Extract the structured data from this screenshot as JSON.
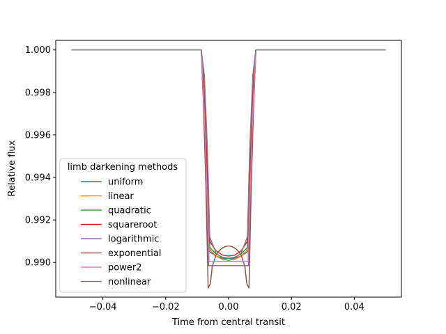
{
  "chart_data": {
    "type": "line",
    "xlabel": "Time from central transit",
    "ylabel": "Relative flux",
    "xlim": [
      -0.055,
      0.055
    ],
    "ylim": [
      0.98837,
      1.00045
    ],
    "xticks": [
      -0.04,
      -0.02,
      0.0,
      0.02,
      0.04
    ],
    "xtick_labels": [
      "−0.04",
      "−0.02",
      "0.00",
      "0.02",
      "0.04"
    ],
    "yticks": [
      0.99,
      0.992,
      0.994,
      0.996,
      0.998,
      1.0
    ],
    "ytick_labels": [
      "0.990",
      "0.992",
      "0.994",
      "0.996",
      "0.998",
      "1.000"
    ],
    "grid": false,
    "legend": {
      "title": "limb darkening methods",
      "position": "lower-left"
    },
    "series": [
      {
        "name": "uniform",
        "color": "#1f77b4",
        "x": [
          -0.05,
          -0.0087,
          -0.0077,
          -0.0067,
          -0.006,
          -0.004,
          -0.002,
          0.0,
          0.002,
          0.004,
          0.006,
          0.0067,
          0.0077,
          0.0087,
          0.05
        ],
        "y": [
          1.0,
          1.0,
          0.9985,
          0.9945,
          0.9905,
          0.9903,
          0.9902,
          0.9902,
          0.9902,
          0.9903,
          0.9905,
          0.9945,
          0.9985,
          1.0,
          1.0
        ]
      },
      {
        "name": "linear",
        "color": "#ff7f0e",
        "x": [
          -0.05,
          -0.0087,
          -0.0077,
          -0.0067,
          -0.006,
          -0.004,
          -0.002,
          0.0,
          0.002,
          0.004,
          0.006,
          0.0067,
          0.0077,
          0.0087,
          0.05
        ],
        "y": [
          1.0,
          1.0,
          0.9982,
          0.9942,
          0.9906,
          0.9903,
          0.99015,
          0.9901,
          0.99015,
          0.9903,
          0.9906,
          0.9942,
          0.9982,
          1.0,
          1.0
        ]
      },
      {
        "name": "quadratic",
        "color": "#2ca02c",
        "x": [
          -0.05,
          -0.0087,
          -0.0077,
          -0.0067,
          -0.006,
          -0.004,
          -0.002,
          0.0,
          0.002,
          0.004,
          0.006,
          0.0067,
          0.0077,
          0.0087,
          0.05
        ],
        "y": [
          1.0,
          1.0,
          0.9983,
          0.9943,
          0.9907,
          0.9904,
          0.99025,
          0.9902,
          0.99025,
          0.9904,
          0.9907,
          0.9943,
          0.9983,
          1.0,
          1.0
        ]
      },
      {
        "name": "squareroot",
        "color": "#d62728",
        "x": [
          -0.05,
          -0.0087,
          -0.0077,
          -0.0067,
          -0.006,
          -0.004,
          -0.002,
          0.0,
          0.002,
          0.004,
          0.006,
          0.0067,
          0.0077,
          0.0087,
          0.05
        ],
        "y": [
          1.0,
          1.0,
          0.998,
          0.9938,
          0.991,
          0.99055,
          0.99035,
          0.9903,
          0.99035,
          0.99055,
          0.991,
          0.9938,
          0.998,
          1.0,
          1.0
        ]
      },
      {
        "name": "logarithmic",
        "color": "#9467bd",
        "x": [
          -0.05,
          -0.0087,
          -0.0077,
          -0.0067,
          -0.0063,
          -0.004,
          -0.002,
          0.0,
          0.002,
          0.004,
          0.0063,
          0.0067,
          0.0077,
          0.0087,
          0.05
        ],
        "y": [
          1.0,
          1.0,
          0.9965,
          0.9915,
          0.98985,
          0.98985,
          0.98985,
          0.98985,
          0.98985,
          0.98985,
          0.98985,
          0.9915,
          0.9965,
          1.0,
          1.0
        ]
      },
      {
        "name": "exponential",
        "color": "#8c564b",
        "x": [
          -0.05,
          -0.0087,
          -0.008,
          -0.0072,
          -0.0065,
          -0.0058,
          -0.0052,
          -0.004,
          -0.003,
          -0.002,
          -0.001,
          0.0,
          0.001,
          0.002,
          0.003,
          0.004,
          0.0052,
          0.0058,
          0.0065,
          0.0072,
          0.008,
          0.0087,
          0.05
        ],
        "y": [
          1.0,
          1.0,
          0.9975,
          0.9935,
          0.9888,
          0.989,
          0.9898,
          0.99035,
          0.99055,
          0.99068,
          0.99075,
          0.99078,
          0.99075,
          0.99068,
          0.99055,
          0.99035,
          0.9898,
          0.989,
          0.9888,
          0.9935,
          0.9975,
          1.0,
          1.0
        ]
      },
      {
        "name": "power2",
        "color": "#e377c2",
        "x": [
          -0.05,
          -0.0087,
          -0.0077,
          -0.0067,
          -0.0062,
          -0.004,
          -0.002,
          0.0,
          0.002,
          0.004,
          0.0062,
          0.0067,
          0.0077,
          0.0087,
          0.05
        ],
        "y": [
          1.0,
          1.0,
          0.997,
          0.9925,
          0.99005,
          0.99005,
          0.99005,
          0.99005,
          0.99005,
          0.99005,
          0.99005,
          0.9925,
          0.997,
          1.0,
          1.0
        ]
      },
      {
        "name": "nonlinear",
        "color": "#7f7f7f",
        "x": [
          -0.05,
          -0.0087,
          -0.0077,
          -0.0067,
          -0.006,
          -0.004,
          -0.002,
          0.0,
          0.002,
          0.004,
          0.006,
          0.0067,
          0.0077,
          0.0087,
          0.05
        ],
        "y": [
          1.0,
          1.0,
          0.9988,
          0.9952,
          0.9912,
          0.99045,
          0.9902,
          0.9901,
          0.9902,
          0.99045,
          0.9912,
          0.9952,
          0.9988,
          1.0,
          1.0
        ]
      }
    ]
  }
}
